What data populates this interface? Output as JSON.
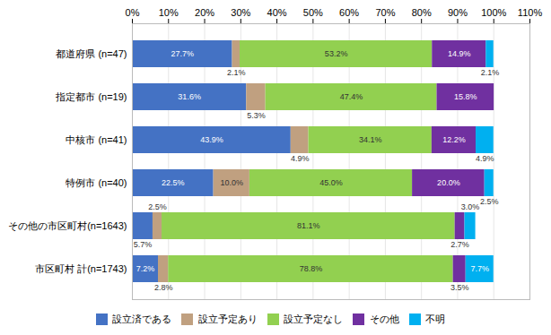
{
  "chart_data": {
    "type": "bar",
    "orientation": "horizontal",
    "stacked": true,
    "data_labels": true,
    "grid": true,
    "legend": "bottom",
    "categories": [
      "都道府県 (n=47)",
      "指定都市 (n=19)",
      "中核市 (n=41)",
      "特例市 (n=40)",
      "その他の市区町村(n=1643)",
      "市区町村 計(n=1743)"
    ],
    "series": [
      {
        "name": "設立済である",
        "color": "#4472C4",
        "values": [
          27.7,
          31.6,
          43.9,
          22.5,
          5.7,
          7.2
        ],
        "value_labels": [
          "27.7%",
          "31.6%",
          "43.9%",
          "22.5%",
          "5.7%",
          "7.2%"
        ]
      },
      {
        "name": "設立予定あり",
        "color": "#C0A080",
        "values": [
          2.1,
          5.3,
          4.9,
          10.0,
          2.5,
          2.8
        ],
        "value_labels": [
          "2.1%",
          "5.3%",
          "4.9%",
          "10.0%",
          "2.5%",
          "2.8%"
        ]
      },
      {
        "name": "設立予定なし",
        "color": "#92D050",
        "values": [
          53.2,
          47.4,
          34.1,
          45.0,
          81.1,
          78.8
        ],
        "value_labels": [
          "53.2%",
          "47.4%",
          "34.1%",
          "45.0%",
          "81.1%",
          "78.8%"
        ]
      },
      {
        "name": "その他",
        "color": "#7030A0",
        "values": [
          14.9,
          15.8,
          12.2,
          20.0,
          2.7,
          3.5
        ],
        "value_labels": [
          "14.9%",
          "15.8%",
          "12.2%",
          "20.0%",
          "2.7%",
          "3.5%"
        ]
      },
      {
        "name": "不明",
        "color": "#00B0F0",
        "values": [
          2.1,
          0.0,
          4.9,
          2.5,
          3.0,
          7.7
        ],
        "value_labels": [
          "2.1%",
          null,
          "4.9%",
          "2.5%",
          "3.0%",
          "7.7%"
        ]
      }
    ],
    "xlim": [
      0,
      110
    ],
    "xticks": [
      {
        "value": 0,
        "label": "0%"
      },
      {
        "value": 10,
        "label": "10%"
      },
      {
        "value": 20,
        "label": "20%"
      },
      {
        "value": 30,
        "label": "30%"
      },
      {
        "value": 40,
        "label": "40%"
      },
      {
        "value": 50,
        "label": "50%"
      },
      {
        "value": 60,
        "label": "60%"
      },
      {
        "value": 70,
        "label": "70%"
      },
      {
        "value": 80,
        "label": "80%"
      },
      {
        "value": 90,
        "label": "90%"
      },
      {
        "value": 100,
        "label": "100%"
      },
      {
        "value": 110,
        "label": "110%"
      }
    ]
  }
}
